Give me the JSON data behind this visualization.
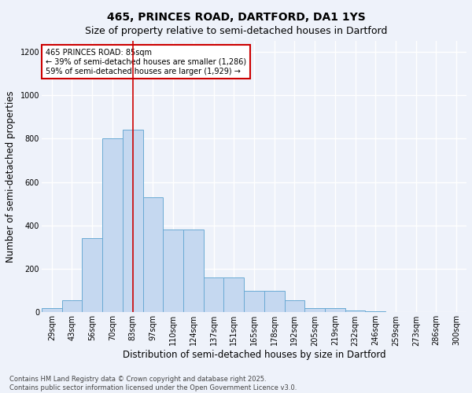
{
  "title_line1": "465, PRINCES ROAD, DARTFORD, DA1 1YS",
  "title_line2": "Size of property relative to semi-detached houses in Dartford",
  "xlabel": "Distribution of semi-detached houses by size in Dartford",
  "ylabel": "Number of semi-detached properties",
  "footnote": "Contains HM Land Registry data © Crown copyright and database right 2025.\nContains public sector information licensed under the Open Government Licence v3.0.",
  "bins": [
    "29sqm",
    "43sqm",
    "56sqm",
    "70sqm",
    "83sqm",
    "97sqm",
    "110sqm",
    "124sqm",
    "137sqm",
    "151sqm",
    "165sqm",
    "178sqm",
    "192sqm",
    "205sqm",
    "219sqm",
    "232sqm",
    "246sqm",
    "259sqm",
    "273sqm",
    "286sqm",
    "300sqm"
  ],
  "bar_values": [
    18,
    55,
    340,
    800,
    840,
    530,
    380,
    380,
    160,
    160,
    100,
    100,
    55,
    18,
    18,
    10,
    5,
    0,
    0,
    0,
    0
  ],
  "bar_color": "#c5d8f0",
  "bar_edge_color": "#6aaad4",
  "property_bin_index": 4,
  "vline_color": "#cc0000",
  "annotation_text": "465 PRINCES ROAD: 85sqm\n← 39% of semi-detached houses are smaller (1,286)\n59% of semi-detached houses are larger (1,929) →",
  "annotation_box_color": "#ffffff",
  "annotation_box_edge": "#cc0000",
  "ylim": [
    0,
    1250
  ],
  "yticks": [
    0,
    200,
    400,
    600,
    800,
    1000,
    1200
  ],
  "background_color": "#eef2fa",
  "grid_color": "#ffffff",
  "title_fontsize": 10,
  "subtitle_fontsize": 9,
  "axis_label_fontsize": 8.5,
  "tick_fontsize": 7,
  "footnote_fontsize": 6
}
